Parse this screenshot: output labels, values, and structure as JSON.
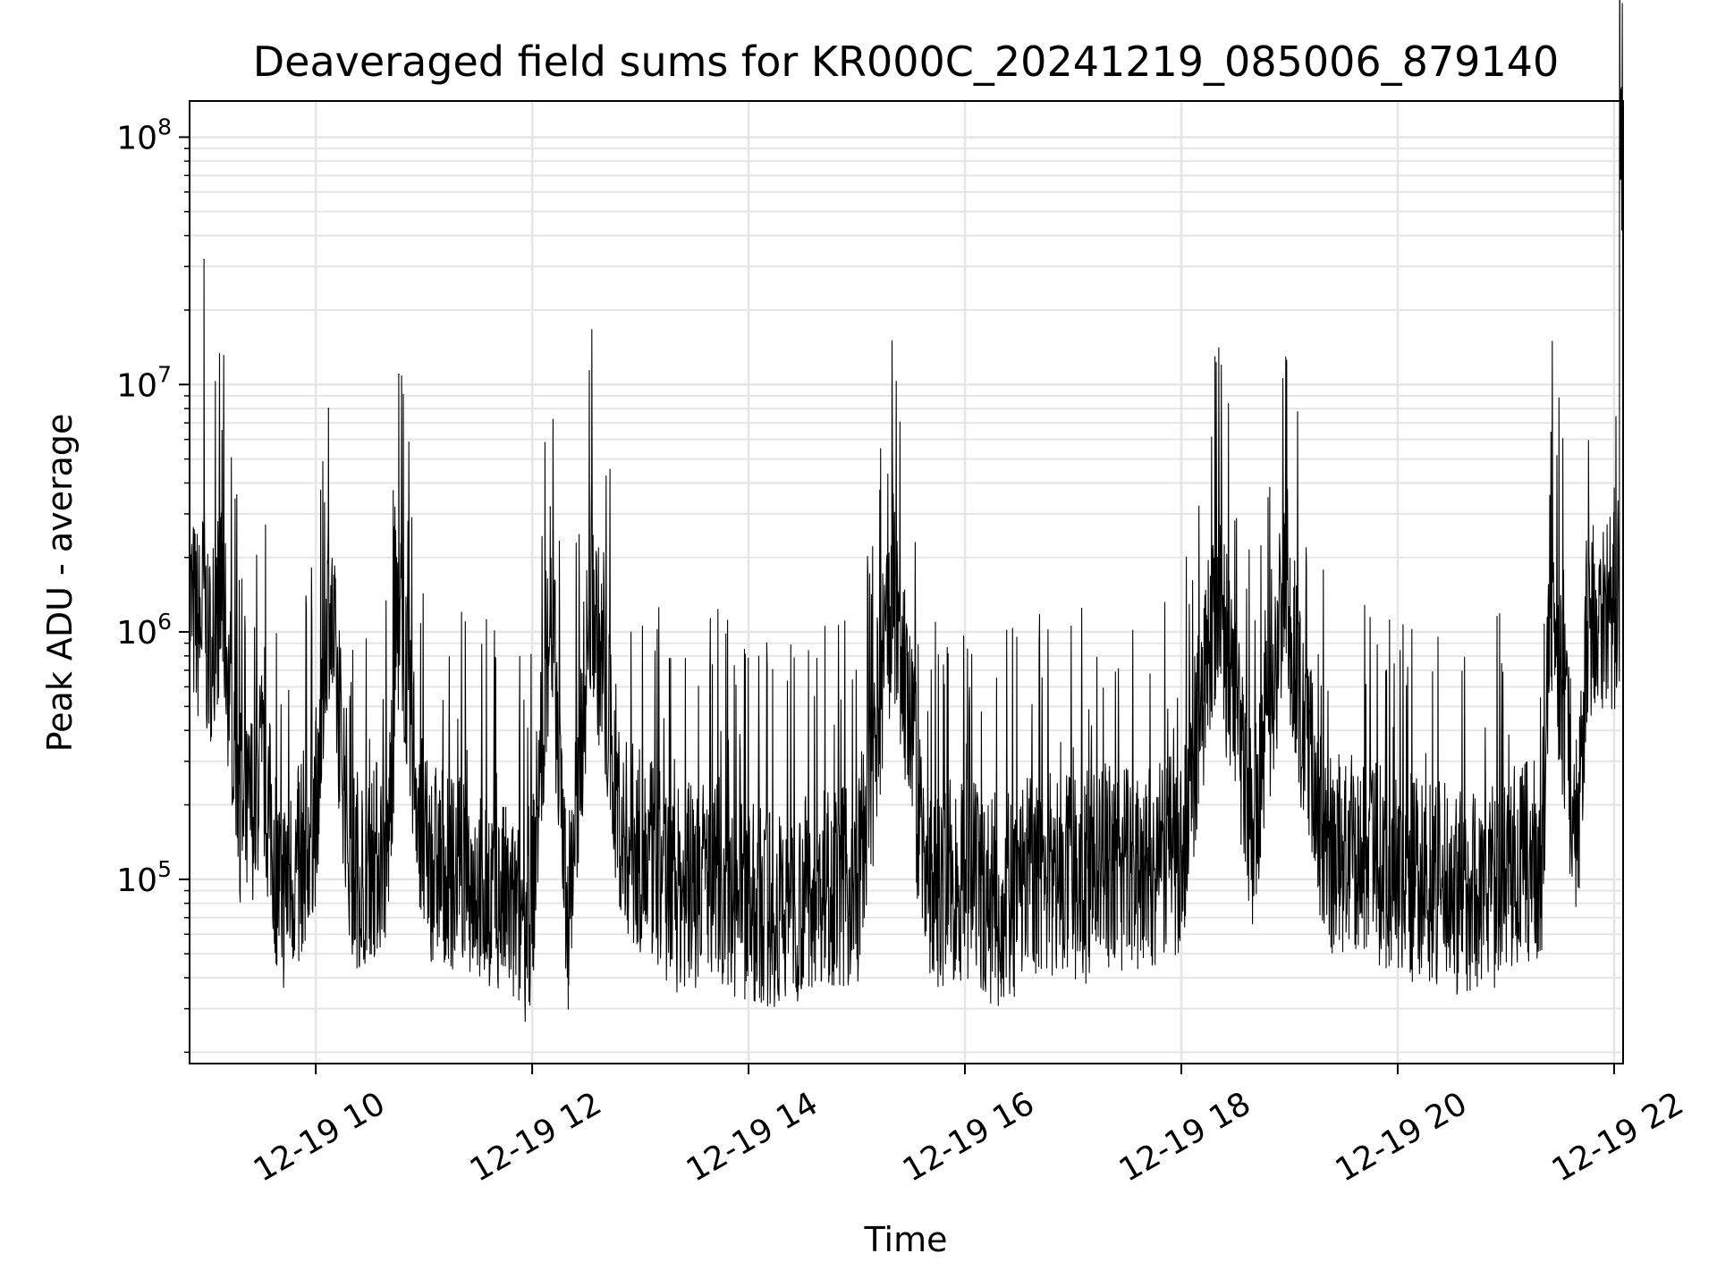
{
  "chart_data": {
    "type": "line",
    "title": "Deaveraged field sums for KR000C_20241219_085006_879140",
    "xlabel": "Time",
    "ylabel": "Peak ADU - average",
    "yscale": "log",
    "ylim": [
      18000,
      140000000
    ],
    "xlim": [
      "2024-12-19 08:50",
      "2024-12-19 22:05"
    ],
    "grid": true,
    "line_color": "#000000",
    "grid_color": "#e5e5e5",
    "x_ticks": [
      {
        "label": "12-19 10",
        "value": "2024-12-19 10:00"
      },
      {
        "label": "12-19 12",
        "value": "2024-12-19 12:00"
      },
      {
        "label": "12-19 14",
        "value": "2024-12-19 14:00"
      },
      {
        "label": "12-19 16",
        "value": "2024-12-19 16:00"
      },
      {
        "label": "12-19 18",
        "value": "2024-12-19 18:00"
      },
      {
        "label": "12-19 20",
        "value": "2024-12-19 20:00"
      },
      {
        "label": "12-19 22",
        "value": "2024-12-19 22:00"
      }
    ],
    "y_ticks": [
      {
        "base": "10",
        "exp": "5",
        "value": 100000
      },
      {
        "base": "10",
        "exp": "6",
        "value": 1000000
      },
      {
        "base": "10",
        "exp": "7",
        "value": 10000000
      },
      {
        "base": "10",
        "exp": "8",
        "value": 100000000
      }
    ],
    "series": [
      {
        "x": [
          "2024-12-19 08:50",
          "2024-12-19 08:56",
          "2024-12-19 08:58",
          "2024-12-19 09:00",
          "2024-12-19 09:05",
          "2024-12-19 09:08",
          "2024-12-19 09:12",
          "2024-12-19 09:15",
          "2024-12-19 09:20",
          "2024-12-19 09:30",
          "2024-12-19 09:40",
          "2024-12-19 09:50",
          "2024-12-19 10:00",
          "2024-12-19 10:07",
          "2024-12-19 10:20",
          "2024-12-19 10:40",
          "2024-12-19 10:46",
          "2024-12-19 11:00",
          "2024-12-19 11:20",
          "2024-12-19 11:40",
          "2024-12-19 11:50",
          "2024-12-19 12:00",
          "2024-12-19 12:10",
          "2024-12-19 12:20",
          "2024-12-19 12:33",
          "2024-12-19 12:50",
          "2024-12-19 13:05",
          "2024-12-19 13:20",
          "2024-12-19 13:40",
          "2024-12-19 14:00",
          "2024-12-19 14:20",
          "2024-12-19 14:40",
          "2024-12-19 15:00",
          "2024-12-19 15:20",
          "2024-12-19 15:40",
          "2024-12-19 16:00",
          "2024-12-19 16:10",
          "2024-12-19 16:20",
          "2024-12-19 16:40",
          "2024-12-19 17:00",
          "2024-12-19 17:20",
          "2024-12-19 17:40",
          "2024-12-19 18:00",
          "2024-12-19 18:20",
          "2024-12-19 18:40",
          "2024-12-19 18:57",
          "2024-12-19 19:20",
          "2024-12-19 19:40",
          "2024-12-19 20:00",
          "2024-12-19 20:20",
          "2024-12-19 20:40",
          "2024-12-19 21:00",
          "2024-12-19 21:20",
          "2024-12-19 21:25",
          "2024-12-19 21:40",
          "2024-12-19 21:45",
          "2024-12-19 21:50",
          "2024-12-19 22:00",
          "2024-12-19 22:03"
        ],
        "y": [
          1300000,
          1000000,
          32000000,
          800000,
          1200000,
          6500000,
          600000,
          400000,
          150000,
          300000,
          90000,
          110000,
          200000,
          8000000,
          110000,
          130000,
          11000000,
          120000,
          110000,
          90000,
          70000,
          80000,
          3200000,
          70000,
          4200000,
          150000,
          120000,
          90000,
          110000,
          80000,
          75000,
          100000,
          90000,
          2700000,
          95000,
          100000,
          90000,
          85000,
          110000,
          100000,
          120000,
          110000,
          130000,
          2000000,
          140000,
          3000000,
          130000,
          120000,
          110000,
          100000,
          90000,
          110000,
          120000,
          6400000,
          150000,
          1100000,
          1300000,
          1200000,
          90000000
        ]
      }
    ]
  }
}
